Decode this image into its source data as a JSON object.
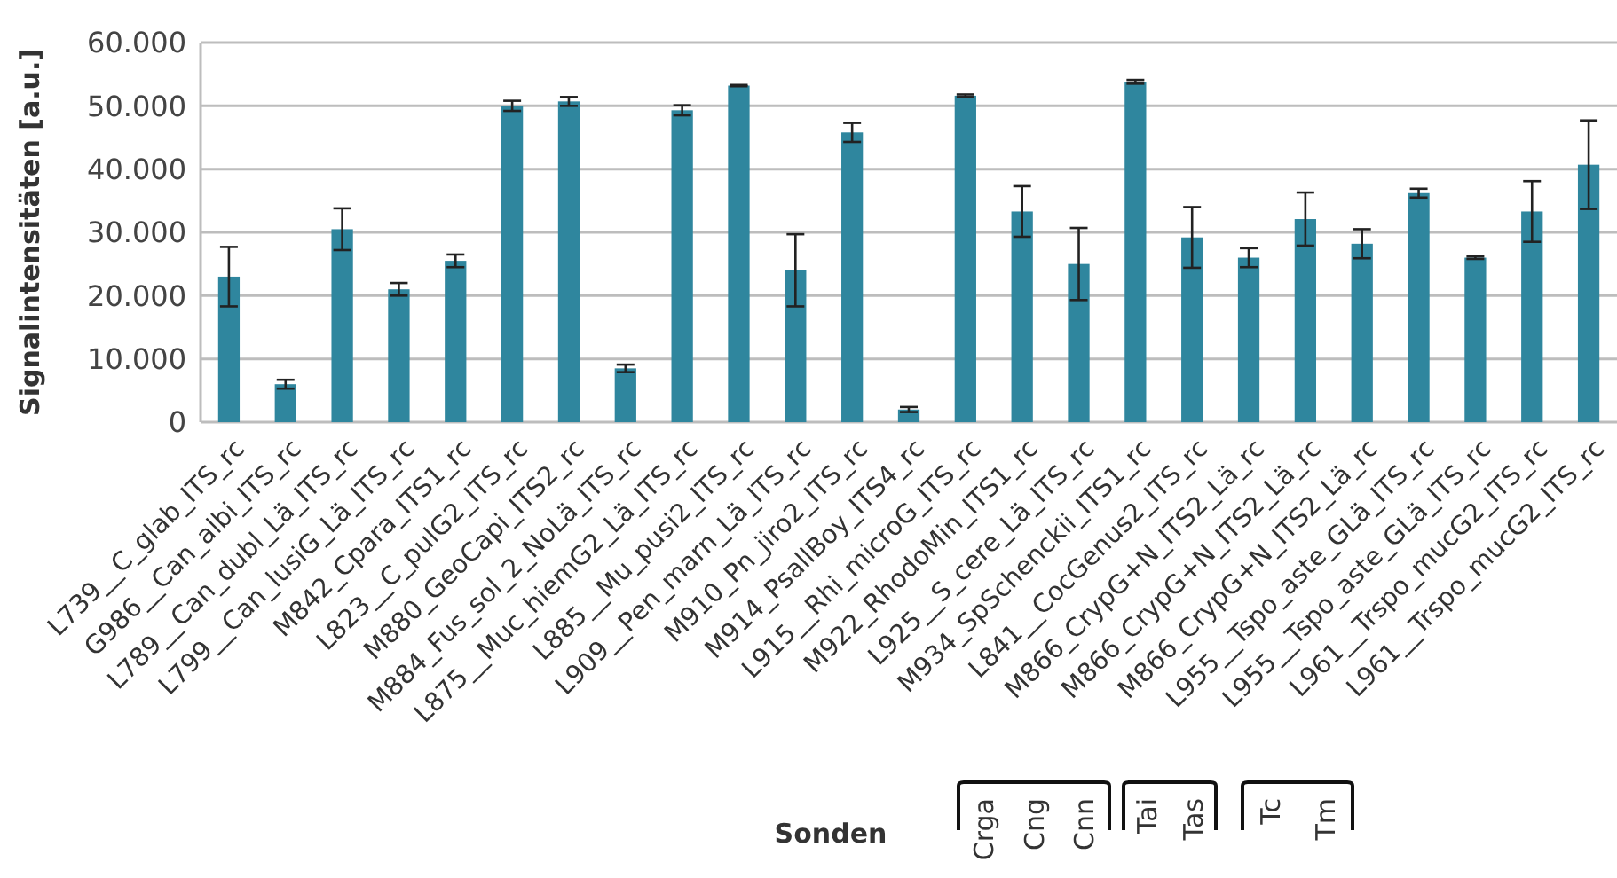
{
  "chart_data": {
    "type": "bar",
    "xlabel": "Sonden",
    "ylabel": "Signalintensitäten [a.u.]",
    "categories": [
      "L739__C_glab_ITS_rc",
      "G986__Can_albi_ITS_rc",
      "L789__Can_dubl_Lä_ITS_rc",
      "L799__Can_lusiG_Lä_ITS_rc",
      "M842_Cpara_ITS1_rc",
      "L823__C_pulG2_ITS_rc",
      "M880_GeoCapi_ITS2_rc",
      "M884_Fus_sol_2_NoLä_ITS_rc",
      "L875__Muc_hiemG2_Lä_ITS_rc",
      "L885__Mu_pusi2_ITS_rc",
      "L909__Pen_marn_Lä_ITS_rc",
      "M910_Pn_jiro2_ITS_rc",
      "M914_PsallBoy_ITS4_rc",
      "L915__Rhi_microG_ITS_rc",
      "M922_RhodoMin_ITS1_rc",
      "L925__S_cere_Lä_ITS_rc",
      "M934_SpSchenckii_ITS1_rc",
      "L841__CocGenus2_ITS_rc",
      "M866_CrypG+N_ITS2_Lä_rc",
      "M866_CrypG+N_ITS2_Lä_rc",
      "M866_CrypG+N_ITS2_Lä_rc",
      "L955__Tspo_aste_GLä_ITS_rc",
      "L955__Tspo_aste_GLä_ITS_rc",
      "L961__Trspo_mucG2_ITS_rc",
      "L961__Trspo_mucG2_ITS_rc"
    ],
    "values": [
      23000,
      6000,
      30500,
      21000,
      25500,
      50000,
      50700,
      8500,
      49300,
      53200,
      24000,
      45800,
      2000,
      51600,
      33300,
      25000,
      53800,
      29200,
      26000,
      32100,
      28200,
      36200,
      26000,
      33300,
      40700
    ],
    "errors": [
      4700,
      700,
      3300,
      1000,
      1000,
      800,
      700,
      600,
      800,
      100,
      5700,
      1500,
      400,
      200,
      4000,
      5700,
      300,
      4800,
      1500,
      4200,
      2300,
      700,
      200,
      4800,
      7000
    ],
    "color": "#2f869e",
    "ylim": [
      0,
      60000
    ],
    "yticks": [
      {
        "value": 0,
        "label": "0"
      },
      {
        "value": 10000,
        "label": "10.000"
      },
      {
        "value": 20000,
        "label": "20.000"
      },
      {
        "value": 30000,
        "label": "30.000"
      },
      {
        "value": 40000,
        "label": "40.000"
      },
      {
        "value": 50000,
        "label": "50.000"
      },
      {
        "value": 60000,
        "label": "60.000"
      }
    ],
    "grid": "y",
    "annotations": [
      "Crga",
      "Cng",
      "Cnn",
      "Tai",
      "Tas",
      "Tc",
      "Tm"
    ]
  }
}
